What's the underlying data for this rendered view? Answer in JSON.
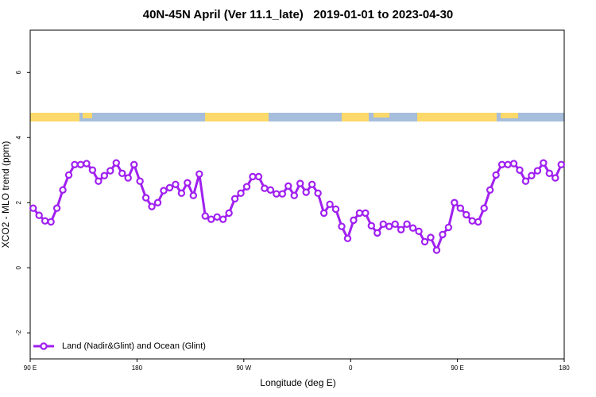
{
  "chart_data": {
    "type": "line",
    "title": "40N-45N April (Ver 11.1_late)   2019-01-01 to 2023-04-30",
    "x_label": "Longitude (deg E)",
    "y_label": "XCO2 - MLO trend (ppm)",
    "xlim": [
      90,
      540
    ],
    "xticks": [
      {
        "value": 90,
        "label": "90 E"
      },
      {
        "value": 180,
        "label": "180"
      },
      {
        "value": 270,
        "label": "90 W"
      },
      {
        "value": 360,
        "label": "0"
      },
      {
        "value": 450,
        "label": "90 E"
      },
      {
        "value": 540,
        "label": "180"
      }
    ],
    "ylim": [
      -2.8,
      7.3
    ],
    "yticks": [
      -2,
      0,
      2,
      4,
      6
    ],
    "legend": "bottom-left",
    "x": [
      92.5,
      97.5,
      102.5,
      107.5,
      112.5,
      117.5,
      122.5,
      127.5,
      132.5,
      137.5,
      142.5,
      147.5,
      152.5,
      157.5,
      162.5,
      167.5,
      172.5,
      177.5,
      182.5,
      187.5,
      192.5,
      197.5,
      202.5,
      207.5,
      212.5,
      217.5,
      222.5,
      227.5,
      232.5,
      237.5,
      242.5,
      247.5,
      252.5,
      257.5,
      262.5,
      267.5,
      272.5,
      277.5,
      282.5,
      287.5,
      292.5,
      297.5,
      302.5,
      307.5,
      312.5,
      317.5,
      322.5,
      327.5,
      332.5,
      337.5,
      342.5,
      347.5,
      352.5,
      357.5,
      362.5,
      367.5,
      372.5,
      377.5,
      382.5,
      387.5,
      392.5,
      397.5,
      402.5,
      407.5,
      412.5,
      417.5,
      422.5,
      427.5,
      432.5,
      437.5,
      442.5,
      447.5,
      452.5,
      457.5,
      462.5,
      467.5,
      472.5,
      477.5,
      482.5,
      487.5,
      492.5,
      497.5,
      502.5,
      507.5,
      512.5,
      517.5,
      522.5,
      527.5,
      532.5,
      537.5
    ],
    "series": [
      {
        "name": "Land (Nadir&Glint) and Ocean (Glint)",
        "color": "#a020f0",
        "values": [
          1.83,
          1.61,
          1.44,
          1.41,
          1.83,
          2.39,
          2.85,
          3.17,
          3.17,
          3.2,
          3.0,
          2.66,
          2.83,
          2.98,
          3.22,
          2.9,
          2.76,
          3.17,
          2.66,
          2.15,
          1.88,
          2.0,
          2.37,
          2.46,
          2.56,
          2.29,
          2.61,
          2.22,
          2.88,
          1.59,
          1.49,
          1.56,
          1.49,
          1.68,
          2.12,
          2.29,
          2.49,
          2.8,
          2.8,
          2.44,
          2.39,
          2.27,
          2.27,
          2.51,
          2.22,
          2.59,
          2.32,
          2.56,
          2.29,
          1.68,
          1.95,
          1.8,
          1.27,
          0.9,
          1.46,
          1.68,
          1.68,
          1.29,
          1.07,
          1.34,
          1.27,
          1.34,
          1.17,
          1.34,
          1.22,
          1.12,
          0.8,
          0.93,
          0.54,
          1.02,
          1.24,
          2.0,
          1.83,
          1.63,
          1.44,
          1.41,
          1.83,
          2.39,
          2.85,
          3.17,
          3.17,
          3.2,
          3.0,
          2.66,
          2.83,
          2.98,
          3.22,
          2.9,
          2.76,
          3.17
        ]
      }
    ]
  }
}
